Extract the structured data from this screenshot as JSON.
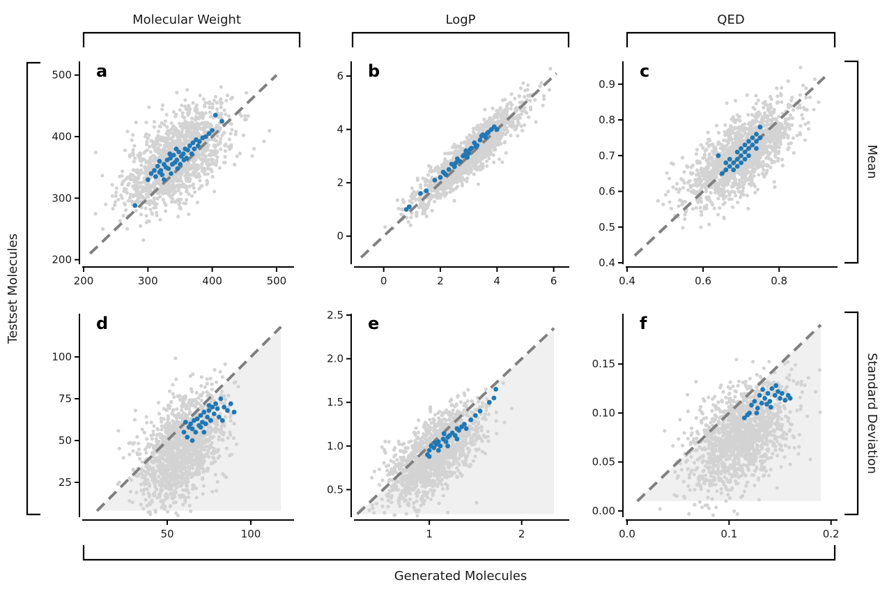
{
  "figure": {
    "column_labels": [
      "Molecular Weight",
      "LogP",
      "QED"
    ],
    "row_labels": [
      "Mean",
      "Standard Deviation"
    ],
    "x_group_label": "Generated Molecules",
    "y_group_label": "Testset Molecules"
  },
  "colors": {
    "background_points": "#d3d3d3",
    "highlight_points": "#1f77b4",
    "diagonal": "#808080",
    "shaded_region": "#f0f0f0"
  },
  "chart_data": [
    {
      "type": "scatter",
      "panel": "a",
      "title": "",
      "xlim": [
        200,
        525
      ],
      "ylim": [
        195,
        520
      ],
      "xticks": [
        200,
        300,
        400,
        500
      ],
      "yticks": [
        200,
        300,
        400,
        500
      ],
      "xtick_labels": [
        "200",
        "300",
        "400",
        "500"
      ],
      "ytick_labels": [
        "200",
        "300",
        "400",
        "500"
      ],
      "diagonal": [
        210,
        500
      ],
      "shaded_region": false,
      "background_cloud": {
        "center": [
          345,
          365
        ],
        "spread": [
          40,
          42
        ],
        "correlation": 0.6,
        "count": 1400,
        "range": [
          210,
          505
        ]
      },
      "highlight_points": [
        [
          280,
          288
        ],
        [
          300,
          330
        ],
        [
          305,
          340
        ],
        [
          310,
          345
        ],
        [
          312,
          335
        ],
        [
          315,
          352
        ],
        [
          318,
          360
        ],
        [
          320,
          345
        ],
        [
          322,
          338
        ],
        [
          325,
          355
        ],
        [
          328,
          350
        ],
        [
          330,
          362
        ],
        [
          332,
          348
        ],
        [
          335,
          365
        ],
        [
          336,
          340
        ],
        [
          338,
          355
        ],
        [
          340,
          370
        ],
        [
          342,
          358
        ],
        [
          345,
          362
        ],
        [
          348,
          375
        ],
        [
          350,
          355
        ],
        [
          352,
          368
        ],
        [
          355,
          372
        ],
        [
          358,
          380
        ],
        [
          360,
          365
        ],
        [
          362,
          378
        ],
        [
          365,
          385
        ],
        [
          368,
          372
        ],
        [
          370,
          390
        ],
        [
          372,
          380
        ],
        [
          375,
          395
        ],
        [
          378,
          385
        ],
        [
          380,
          392
        ],
        [
          385,
          398
        ],
        [
          390,
          400
        ],
        [
          395,
          405
        ],
        [
          400,
          410
        ],
        [
          405,
          435
        ],
        [
          415,
          425
        ],
        [
          325,
          330
        ],
        [
          318,
          342
        ],
        [
          334,
          372
        ],
        [
          346,
          348
        ],
        [
          356,
          362
        ],
        [
          344,
          380
        ]
      ]
    },
    {
      "type": "scatter",
      "panel": "b",
      "title": "",
      "xlim": [
        -1,
        6.5
      ],
      "ylim": [
        -1,
        6.5
      ],
      "xticks": [
        0,
        2,
        4,
        6
      ],
      "yticks": [
        0,
        2,
        4,
        6
      ],
      "xtick_labels": [
        "0",
        "2",
        "4",
        "6"
      ],
      "ytick_labels": [
        "0",
        "2",
        "4",
        "6"
      ],
      "diagonal": [
        -0.8,
        6.1
      ],
      "shaded_region": false,
      "background_cloud": {
        "center": [
          3,
          3
        ],
        "spread": [
          0.95,
          0.95
        ],
        "correlation": 0.92,
        "count": 1400,
        "range": [
          -0.8,
          6.2
        ]
      },
      "highlight_points": [
        [
          0.8,
          1.0
        ],
        [
          0.9,
          1.1
        ],
        [
          1.3,
          1.6
        ],
        [
          1.5,
          1.7
        ],
        [
          1.8,
          2.1
        ],
        [
          2.0,
          2.2
        ],
        [
          2.1,
          2.4
        ],
        [
          2.2,
          2.3
        ],
        [
          2.3,
          2.5
        ],
        [
          2.4,
          2.7
        ],
        [
          2.5,
          2.6
        ],
        [
          2.6,
          2.9
        ],
        [
          2.7,
          2.8
        ],
        [
          2.8,
          3.0
        ],
        [
          2.9,
          3.2
        ],
        [
          3.0,
          3.1
        ],
        [
          3.1,
          3.3
        ],
        [
          3.2,
          3.5
        ],
        [
          3.3,
          3.4
        ],
        [
          3.4,
          3.6
        ],
        [
          3.5,
          3.8
        ],
        [
          3.6,
          3.7
        ],
        [
          3.7,
          3.9
        ],
        [
          3.8,
          4.0
        ],
        [
          3.9,
          4.1
        ],
        [
          4.0,
          4.0
        ],
        [
          2.55,
          2.75
        ],
        [
          3.05,
          3.25
        ],
        [
          3.45,
          3.75
        ],
        [
          2.15,
          2.35
        ],
        [
          2.85,
          3.05
        ],
        [
          3.65,
          3.85
        ],
        [
          3.25,
          3.35
        ],
        [
          2.95,
          2.95
        ]
      ]
    },
    {
      "type": "scatter",
      "panel": "c",
      "title": "",
      "xlim": [
        0.4,
        0.95
      ],
      "ylim": [
        0.4,
        0.96
      ],
      "xticks": [
        0.4,
        0.6,
        0.8
      ],
      "yticks": [
        0.4,
        0.5,
        0.6,
        0.7,
        0.8,
        0.9
      ],
      "xtick_labels": [
        "0.4",
        "0.6",
        "0.8"
      ],
      "ytick_labels": [
        "0.4",
        "0.5",
        "0.6",
        "0.7",
        "0.8",
        "0.9"
      ],
      "diagonal": [
        0.42,
        0.92
      ],
      "shaded_region": false,
      "background_cloud": {
        "center": [
          0.7,
          0.7
        ],
        "spread": [
          0.07,
          0.07
        ],
        "correlation": 0.7,
        "count": 1400,
        "range": [
          0.43,
          0.92
        ]
      },
      "highlight_points": [
        [
          0.65,
          0.65
        ],
        [
          0.66,
          0.66
        ],
        [
          0.67,
          0.67
        ],
        [
          0.68,
          0.68
        ],
        [
          0.69,
          0.69
        ],
        [
          0.7,
          0.7
        ],
        [
          0.71,
          0.71
        ],
        [
          0.72,
          0.72
        ],
        [
          0.73,
          0.73
        ],
        [
          0.74,
          0.74
        ],
        [
          0.75,
          0.75
        ],
        [
          0.67,
          0.69
        ],
        [
          0.68,
          0.66
        ],
        [
          0.69,
          0.71
        ],
        [
          0.7,
          0.68
        ],
        [
          0.71,
          0.73
        ],
        [
          0.72,
          0.7
        ],
        [
          0.73,
          0.75
        ],
        [
          0.74,
          0.72
        ],
        [
          0.75,
          0.78
        ],
        [
          0.66,
          0.68
        ],
        [
          0.7,
          0.72
        ],
        [
          0.72,
          0.74
        ],
        [
          0.64,
          0.7
        ],
        [
          0.74,
          0.76
        ],
        [
          0.69,
          0.67
        ],
        [
          0.71,
          0.69
        ]
      ]
    },
    {
      "type": "scatter",
      "panel": "d",
      "title": "",
      "xlim": [
        0,
        125
      ],
      "ylim": [
        5,
        125
      ],
      "xticks": [
        50,
        100
      ],
      "yticks": [
        25,
        50,
        75,
        100
      ],
      "xtick_labels": [
        "50",
        "100"
      ],
      "ytick_labels": [
        "25",
        "50",
        "75",
        "100"
      ],
      "diagonal": [
        8,
        118
      ],
      "shaded_region": true,
      "background_cloud": {
        "center": [
          58,
          45
        ],
        "spread": [
          13,
          17
        ],
        "correlation": 0.45,
        "count": 1400,
        "range": [
          20,
          120
        ]
      },
      "highlight_points": [
        [
          60,
          55
        ],
        [
          62,
          52
        ],
        [
          63,
          58
        ],
        [
          64,
          60
        ],
        [
          65,
          57
        ],
        [
          66,
          62
        ],
        [
          67,
          55
        ],
        [
          68,
          63
        ],
        [
          69,
          59
        ],
        [
          70,
          65
        ],
        [
          71,
          61
        ],
        [
          72,
          67
        ],
        [
          73,
          60
        ],
        [
          74,
          64
        ],
        [
          75,
          68
        ],
        [
          76,
          62
        ],
        [
          77,
          70
        ],
        [
          78,
          66
        ],
        [
          79,
          72
        ],
        [
          80,
          69
        ],
        [
          81,
          64
        ],
        [
          82,
          75
        ],
        [
          84,
          70
        ],
        [
          86,
          68
        ],
        [
          88,
          72
        ],
        [
          90,
          67
        ],
        [
          65,
          50
        ],
        [
          70,
          58
        ],
        [
          61,
          61
        ],
        [
          75,
          71
        ],
        [
          83,
          62
        ],
        [
          72,
          55
        ]
      ]
    },
    {
      "type": "scatter",
      "panel": "e",
      "title": "",
      "xlim": [
        0.2,
        2.5
      ],
      "ylim": [
        0.2,
        2.5
      ],
      "xticks": [
        1,
        2
      ],
      "yticks": [
        0.5,
        1.0,
        1.5,
        2.0,
        2.5
      ],
      "xtick_labels": [
        "1",
        "2"
      ],
      "ytick_labels": [
        "0.5",
        "1.0",
        "1.5",
        "2.0",
        "2.5"
      ],
      "diagonal": [
        0.22,
        2.35
      ],
      "shaded_region": true,
      "background_cloud": {
        "center": [
          1.05,
          0.9
        ],
        "spread": [
          0.25,
          0.28
        ],
        "correlation": 0.65,
        "count": 1400,
        "range": [
          0.3,
          2.4
        ]
      },
      "highlight_points": [
        [
          0.98,
          0.9
        ],
        [
          1.0,
          0.95
        ],
        [
          1.02,
          1.0
        ],
        [
          1.05,
          0.98
        ],
        [
          1.08,
          1.02
        ],
        [
          1.1,
          1.05
        ],
        [
          1.12,
          1.0
        ],
        [
          1.15,
          1.08
        ],
        [
          1.18,
          1.05
        ],
        [
          1.2,
          1.1
        ],
        [
          1.22,
          1.12
        ],
        [
          1.25,
          1.15
        ],
        [
          1.28,
          1.12
        ],
        [
          1.3,
          1.2
        ],
        [
          1.32,
          1.18
        ],
        [
          1.35,
          1.22
        ],
        [
          1.38,
          1.25
        ],
        [
          1.4,
          1.2
        ],
        [
          1.45,
          1.3
        ],
        [
          1.5,
          1.35
        ],
        [
          1.55,
          1.4
        ],
        [
          1.65,
          1.5
        ],
        [
          1.7,
          1.55
        ],
        [
          1.72,
          1.65
        ],
        [
          1.0,
          0.88
        ],
        [
          1.1,
          0.95
        ],
        [
          1.2,
          1.0
        ],
        [
          1.3,
          1.08
        ],
        [
          1.06,
          1.04
        ],
        [
          1.16,
          1.14
        ]
      ]
    },
    {
      "type": "scatter",
      "panel": "f",
      "title": "",
      "xlim": [
        0,
        0.205
      ],
      "ylim": [
        -0.005,
        0.2
      ],
      "xticks": [
        0.0,
        0.1,
        0.2
      ],
      "yticks": [
        0.0,
        0.05,
        0.1,
        0.15
      ],
      "xtick_labels": [
        "0.0",
        "0.1",
        "0.2"
      ],
      "ytick_labels": [
        "0.00",
        "0.05",
        "0.10",
        "0.15"
      ],
      "diagonal": [
        0.01,
        0.19
      ],
      "shaded_region": true,
      "background_cloud": {
        "center": [
          0.11,
          0.075
        ],
        "spread": [
          0.025,
          0.028
        ],
        "correlation": 0.45,
        "count": 1400,
        "range": [
          0.02,
          0.19
        ]
      },
      "highlight_points": [
        [
          0.115,
          0.095
        ],
        [
          0.12,
          0.1
        ],
        [
          0.122,
          0.108
        ],
        [
          0.125,
          0.112
        ],
        [
          0.128,
          0.105
        ],
        [
          0.13,
          0.118
        ],
        [
          0.132,
          0.11
        ],
        [
          0.135,
          0.115
        ],
        [
          0.138,
          0.12
        ],
        [
          0.14,
          0.112
        ],
        [
          0.142,
          0.125
        ],
        [
          0.145,
          0.118
        ],
        [
          0.148,
          0.122
        ],
        [
          0.15,
          0.115
        ],
        [
          0.152,
          0.12
        ],
        [
          0.155,
          0.113
        ],
        [
          0.158,
          0.118
        ],
        [
          0.16,
          0.115
        ],
        [
          0.127,
          0.1
        ],
        [
          0.133,
          0.124
        ],
        [
          0.141,
          0.106
        ],
        [
          0.118,
          0.098
        ],
        [
          0.146,
          0.128
        ],
        [
          0.137,
          0.109
        ]
      ]
    }
  ]
}
